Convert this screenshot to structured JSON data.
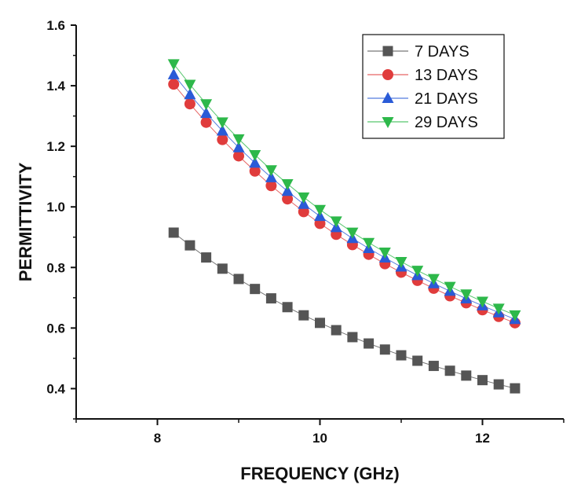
{
  "chart_data": {
    "type": "scatter",
    "title": "",
    "xlabel": "FREQUENCY (GHz)",
    "ylabel": "PERMITTIVITY",
    "xlim": [
      7,
      13
    ],
    "ylim": [
      0.3,
      1.6
    ],
    "x_ticks": [
      8,
      10,
      12
    ],
    "y_ticks": [
      0.4,
      0.6,
      0.8,
      1.0,
      1.2,
      1.4,
      1.6
    ],
    "y_tick_labels": [
      "0.4",
      "0.6",
      "0.8",
      "1.0",
      "1.2",
      "1.4",
      "1.6"
    ],
    "grid": false,
    "legend_position": "top-right",
    "x": [
      8.2,
      8.4,
      8.6,
      8.8,
      9.0,
      9.2,
      9.4,
      9.6,
      9.8,
      10.0,
      10.2,
      10.4,
      10.6,
      10.8,
      11.0,
      11.2,
      11.4,
      11.6,
      11.8,
      12.0,
      12.2,
      12.4
    ],
    "series": [
      {
        "name": "7 DAYS",
        "marker": "square",
        "color": "#555555",
        "values": [
          0.915,
          0.873,
          0.833,
          0.796,
          0.762,
          0.729,
          0.698,
          0.669,
          0.642,
          0.617,
          0.593,
          0.57,
          0.549,
          0.529,
          0.51,
          0.492,
          0.475,
          0.459,
          0.443,
          0.428,
          0.414,
          0.401
        ]
      },
      {
        "name": "13 DAYS",
        "marker": "circle",
        "color": "#e03c3c",
        "values": [
          1.405,
          1.34,
          1.279,
          1.222,
          1.168,
          1.118,
          1.07,
          1.026,
          0.984,
          0.945,
          0.909,
          0.875,
          0.843,
          0.812,
          0.784,
          0.757,
          0.731,
          0.706,
          0.683,
          0.66,
          0.638,
          0.617
        ]
      },
      {
        "name": "21 DAYS",
        "marker": "triangle-up",
        "color": "#2a5bd7",
        "values": [
          1.437,
          1.371,
          1.309,
          1.251,
          1.196,
          1.145,
          1.097,
          1.052,
          1.009,
          0.969,
          0.932,
          0.896,
          0.863,
          0.832,
          0.802,
          0.774,
          0.747,
          0.722,
          0.697,
          0.674,
          0.651,
          0.629
        ]
      },
      {
        "name": "29 DAYS",
        "marker": "triangle-down",
        "color": "#2db84a",
        "values": [
          1.472,
          1.404,
          1.34,
          1.28,
          1.224,
          1.172,
          1.122,
          1.076,
          1.032,
          0.991,
          0.953,
          0.916,
          0.882,
          0.85,
          0.819,
          0.79,
          0.763,
          0.737,
          0.712,
          0.688,
          0.665,
          0.643
        ]
      }
    ]
  }
}
